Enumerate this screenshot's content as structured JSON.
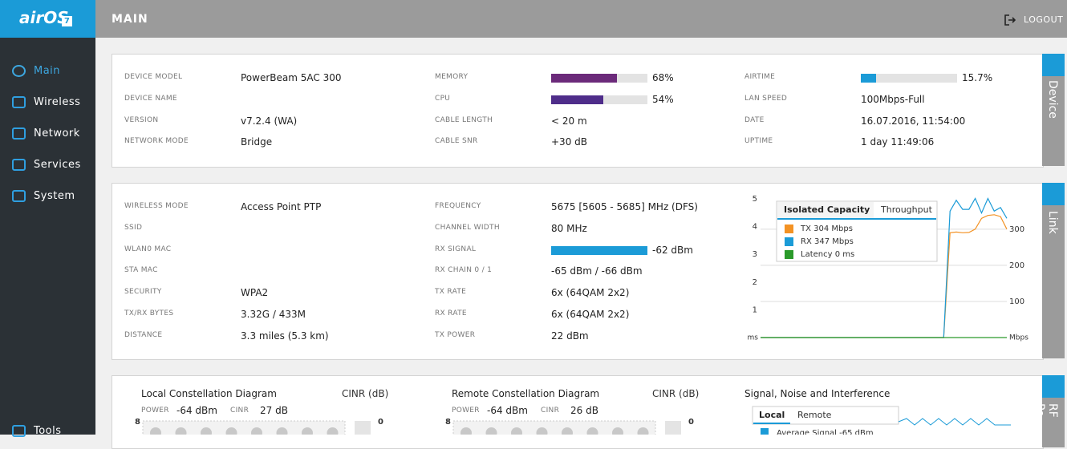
{
  "sidebar": {
    "logo": "airOS",
    "logo_badge": "7",
    "nav": [
      "Main",
      "Wireless",
      "Network",
      "Services",
      "System",
      "Tools"
    ]
  },
  "header": {
    "title": "MAIN",
    "logout": "LOGOUT"
  },
  "device": {
    "tab": "Device",
    "columns": [
      [
        {
          "label": "DEVICE MODEL",
          "value": "PowerBeam 5AC 300"
        },
        {
          "label": "DEVICE NAME"
        },
        {
          "label": "VERSION",
          "value": "v7.2.4 (WA)"
        },
        {
          "label": "NETWORK MODE",
          "value": "Bridge"
        }
      ],
      [
        {
          "label": "MEMORY",
          "percent": 68,
          "value": "68%"
        },
        {
          "label": "CPU",
          "percent": 54,
          "value": "54%"
        },
        {
          "label": "CABLE LENGTH",
          "value": "< 20 m"
        },
        {
          "label": "CABLE SNR",
          "value": "+30 dB"
        }
      ],
      [
        {
          "label": "AIRTIME",
          "percent": 15.7,
          "value": "15.7%"
        },
        {
          "label": "LAN SPEED",
          "value": "100Mbps-Full"
        },
        {
          "label": "DATE",
          "value": "16.07.2016, 11:54:00"
        },
        {
          "label": "UPTIME",
          "value": "1 day 11:49:06"
        }
      ]
    ]
  },
  "link": {
    "tab": "Link",
    "columns": [
      [
        {
          "label": "WIRELESS MODE",
          "value": "Access Point PTP"
        },
        {
          "label": "SSID"
        },
        {
          "label": "WLAN0 MAC"
        },
        {
          "label": "STA MAC"
        },
        {
          "label": "SECURITY",
          "value": "WPA2"
        },
        {
          "label": "TX/RX BYTES",
          "value": "3.32G / 433M"
        },
        {
          "label": "DISTANCE",
          "value": "3.3 miles (5.3 km)"
        }
      ],
      [
        {
          "label": "FREQUENCY",
          "value": "5675 [5605 - 5685] MHz (DFS)"
        },
        {
          "label": "CHANNEL WIDTH",
          "value": "80 MHz"
        },
        {
          "label": "RX SIGNAL",
          "value": "-62 dBm"
        },
        {
          "label": "RX CHAIN 0 / 1",
          "value": "-65 dBm / -66 dBm"
        },
        {
          "label": "TX RATE",
          "value": "6x (64QAM 2x2)"
        },
        {
          "label": "RX RATE",
          "value": "6x (64QAM 2x2)"
        },
        {
          "label": "TX POWER",
          "value": "22 dBm"
        }
      ]
    ],
    "chart": {
      "type": "line",
      "tabs": [
        "Isolated Capacity",
        "Throughput"
      ],
      "ylabel": "ms",
      "y2label": "Mbps",
      "ylim": [
        0,
        5
      ],
      "yticks": [
        1,
        2,
        3,
        4,
        5
      ],
      "y2lim": [
        0,
        384
      ],
      "y2ticks": [
        100,
        200,
        300
      ],
      "series": [
        {
          "name": "TX 304 Mbps",
          "color": "#f39224",
          "axis": "y2",
          "values": [
            0,
            0,
            0,
            0,
            0,
            0,
            0,
            0,
            0,
            0,
            0,
            0,
            0,
            0,
            0,
            0,
            0,
            0,
            0,
            0,
            0,
            0,
            0,
            0,
            0,
            0,
            0,
            0,
            0,
            0,
            290,
            292,
            290,
            291,
            300,
            330,
            338,
            340,
            335,
            300
          ]
        },
        {
          "name": "RX 347 Mbps",
          "color": "#1b9bd7",
          "axis": "y2",
          "values": [
            0,
            0,
            0,
            0,
            0,
            0,
            0,
            0,
            0,
            0,
            0,
            0,
            0,
            0,
            0,
            0,
            0,
            0,
            0,
            0,
            0,
            0,
            0,
            0,
            0,
            0,
            0,
            0,
            0,
            0,
            350,
            380,
            355,
            355,
            385,
            345,
            385,
            350,
            360,
            330
          ]
        },
        {
          "name": "Latency 0 ms",
          "color": "#2a9a2a",
          "values": [
            0,
            0,
            0,
            0,
            0,
            0,
            0,
            0,
            0,
            0,
            0,
            0,
            0,
            0,
            0,
            0,
            0,
            0,
            0,
            0,
            0,
            0,
            0,
            0,
            0,
            0,
            0,
            0,
            0,
            0,
            0,
            0,
            0,
            0,
            0,
            0,
            0,
            0,
            0,
            0
          ]
        }
      ]
    }
  },
  "rf": {
    "tab": "RF Pe",
    "local": {
      "title": "Local Constellation Diagram",
      "cinr_title": "CINR (dB)",
      "power_label": "POWER",
      "power": "-64 dBm",
      "cinr_label": "CINR",
      "cinr": "27 dB",
      "axis_top": "8",
      "cinr_axis": "0"
    },
    "remote": {
      "title": "Remote Constellation Diagram",
      "cinr_title": "CINR (dB)",
      "power_label": "POWER",
      "power": "-64 dBm",
      "cinr_label": "CINR",
      "cinr": "26 dB",
      "axis_top": "8",
      "cinr_axis": "0"
    },
    "signal": {
      "title": "Signal, Noise and Interference",
      "tabs": [
        "Local",
        "Remote"
      ],
      "legend": "Average Signal -65 dBm"
    }
  }
}
